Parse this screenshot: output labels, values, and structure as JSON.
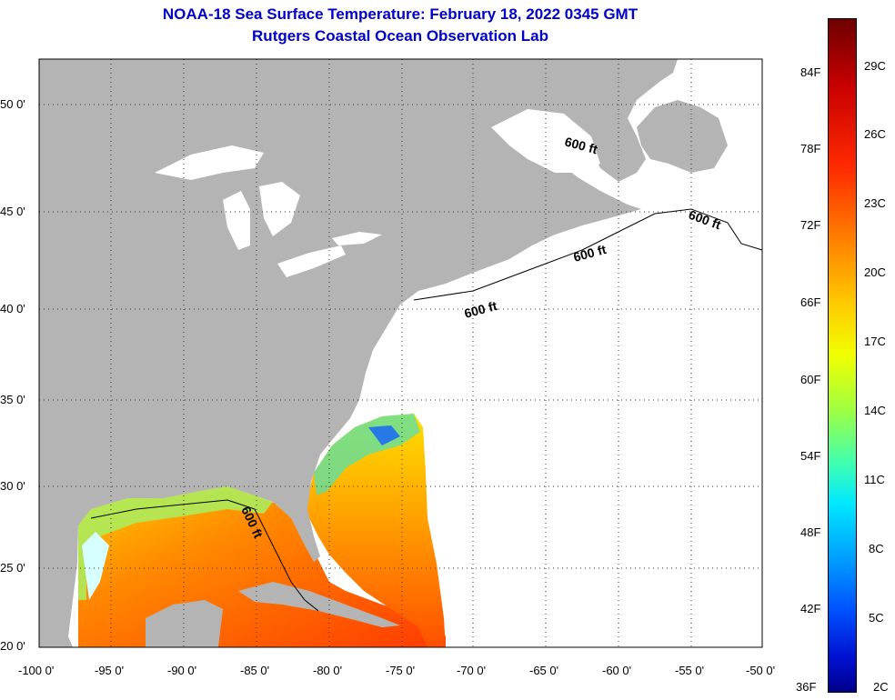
{
  "title": {
    "line1": "NOAA-18 Sea Surface Temperature:  February 18, 2022 0345 GMT",
    "line2": "Rutgers Coastal Ocean Observation Lab"
  },
  "map": {
    "lat_labels": [
      "50 0'",
      "45 0'",
      "40 0'",
      "35 0'",
      "30 0'",
      "25 0'",
      "20 0'"
    ],
    "lon_labels": [
      "-100 0'",
      "-95 0'",
      "-90 0'",
      "-85 0'",
      "-80 0'",
      "-75 0'",
      "-70 0'",
      "-65 0'",
      "-60 0'",
      "-55 0'",
      "-50 0'"
    ],
    "depth_contour_label": "600 ft",
    "land_color": "#b4b4b4",
    "ocean_nodata_color": "#ffffff"
  },
  "colorbar": {
    "fahrenheit_labels": [
      "84F",
      "78F",
      "72F",
      "66F",
      "60F",
      "54F",
      "48F",
      "42F",
      "36F"
    ],
    "celsius_labels": [
      "29C",
      "26C",
      "23C",
      "20C",
      "17C",
      "14C",
      "11C",
      "8C",
      "5C",
      "2C"
    ]
  }
}
